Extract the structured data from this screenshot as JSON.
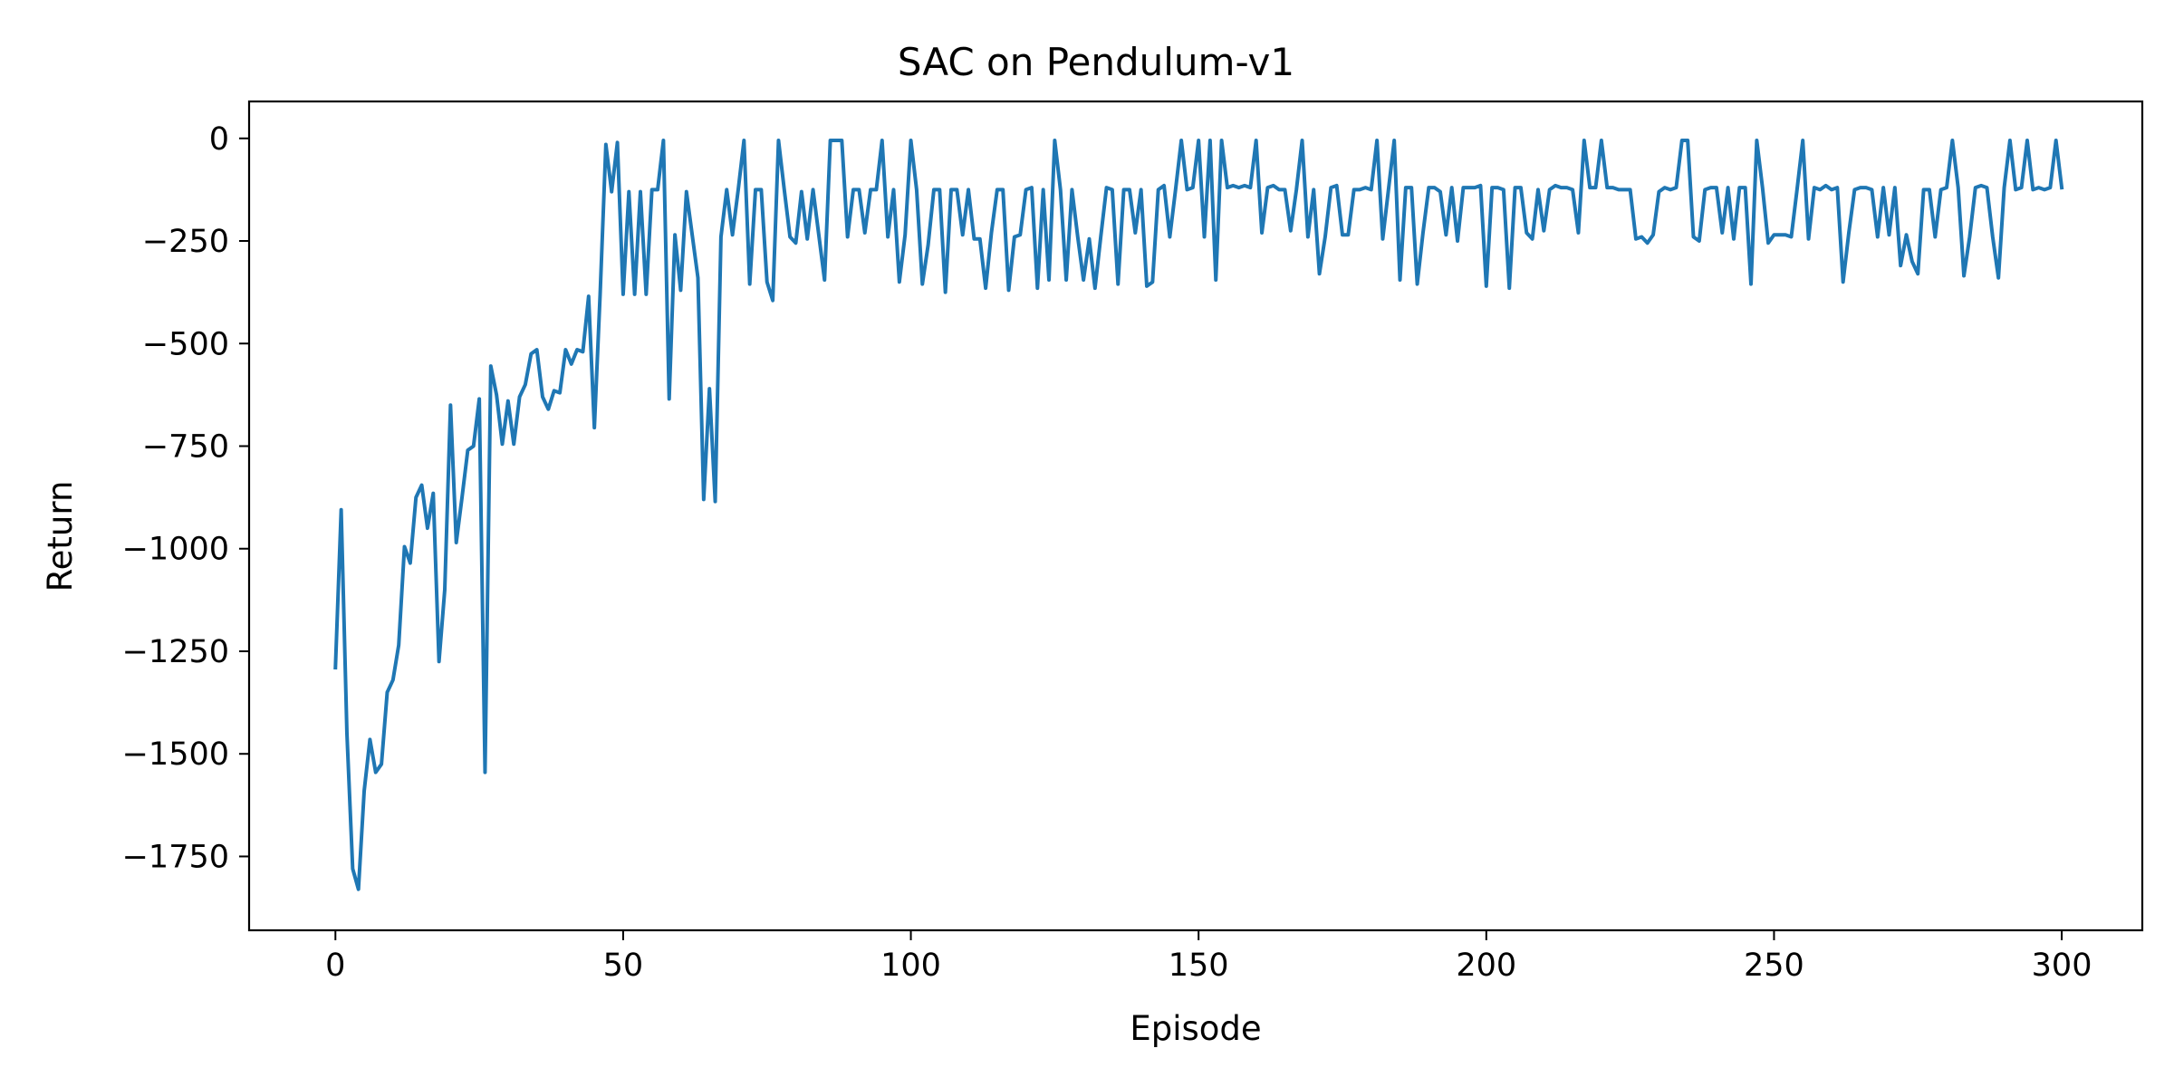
{
  "chart_data": {
    "type": "line",
    "title": "SAC on Pendulum-v1",
    "xlabel": "Episode",
    "ylabel": "Return",
    "xlim": [
      -15,
      314
    ],
    "ylim": [
      -1930,
      90
    ],
    "xticks": [
      0,
      50,
      100,
      150,
      200,
      250,
      300
    ],
    "yticks": [
      0,
      -250,
      -500,
      -750,
      -1000,
      -1250,
      -1500,
      -1750
    ],
    "xtick_labels": [
      "0",
      "50",
      "100",
      "150",
      "200",
      "250",
      "300"
    ],
    "ytick_labels": [
      "0",
      "−250",
      "−500",
      "−750",
      "−1000",
      "−1250",
      "−1500",
      "−1750"
    ],
    "grid": false,
    "series": [
      {
        "color": "#1f77b4",
        "x_start": 0,
        "x_step": 1,
        "values": [
          -1290,
          -905,
          -1450,
          -1780,
          -1830,
          -1590,
          -1465,
          -1545,
          -1525,
          -1350,
          -1320,
          -1235,
          -995,
          -1035,
          -875,
          -845,
          -950,
          -865,
          -1275,
          -1100,
          -650,
          -985,
          -875,
          -760,
          -750,
          -635,
          -1545,
          -555,
          -625,
          -745,
          -640,
          -745,
          -630,
          -600,
          -525,
          -515,
          -630,
          -660,
          -615,
          -620,
          -515,
          -550,
          -515,
          -520,
          -385,
          -705,
          -380,
          -15,
          -130,
          -10,
          -380,
          -130,
          -380,
          -130,
          -380,
          -125,
          -125,
          -5,
          -635,
          -235,
          -370,
          -130,
          -235,
          -340,
          -880,
          -610,
          -885,
          -240,
          -125,
          -235,
          -125,
          -5,
          -355,
          -125,
          -125,
          -350,
          -395,
          -5,
          -125,
          -240,
          -255,
          -130,
          -245,
          -125,
          -235,
          -345,
          -5,
          -5,
          -5,
          -240,
          -125,
          -125,
          -230,
          -125,
          -125,
          -5,
          -240,
          -125,
          -350,
          -235,
          -5,
          -125,
          -355,
          -260,
          -125,
          -125,
          -375,
          -125,
          -125,
          -235,
          -125,
          -245,
          -245,
          -365,
          -230,
          -125,
          -125,
          -370,
          -240,
          -235,
          -125,
          -120,
          -365,
          -125,
          -345,
          -5,
          -125,
          -345,
          -125,
          -240,
          -345,
          -245,
          -365,
          -240,
          -120,
          -125,
          -355,
          -125,
          -125,
          -230,
          -125,
          -360,
          -350,
          -125,
          -115,
          -240,
          -125,
          -5,
          -125,
          -120,
          -5,
          -240,
          -5,
          -345,
          -5,
          -120,
          -115,
          -120,
          -115,
          -120,
          -5,
          -230,
          -120,
          -115,
          -125,
          -125,
          -225,
          -125,
          -5,
          -240,
          -125,
          -330,
          -240,
          -120,
          -115,
          -235,
          -235,
          -125,
          -125,
          -120,
          -125,
          -5,
          -245,
          -125,
          -5,
          -345,
          -120,
          -120,
          -355,
          -230,
          -120,
          -120,
          -130,
          -235,
          -120,
          -250,
          -120,
          -120,
          -120,
          -115,
          -360,
          -120,
          -120,
          -125,
          -365,
          -120,
          -120,
          -230,
          -245,
          -125,
          -225,
          -125,
          -115,
          -120,
          -120,
          -125,
          -230,
          -5,
          -120,
          -120,
          -5,
          -120,
          -120,
          -125,
          -125,
          -125,
          -245,
          -240,
          -255,
          -235,
          -130,
          -120,
          -125,
          -120,
          -5,
          -5,
          -240,
          -250,
          -125,
          -120,
          -120,
          -230,
          -120,
          -245,
          -120,
          -120,
          -355,
          -5,
          -120,
          -255,
          -235,
          -235,
          -235,
          -240,
          -125,
          -5,
          -245,
          -120,
          -125,
          -115,
          -125,
          -120,
          -350,
          -230,
          -125,
          -120,
          -120,
          -125,
          -240,
          -120,
          -235,
          -120,
          -310,
          -235,
          -300,
          -330,
          -125,
          -125,
          -240,
          -125,
          -120,
          -5,
          -120,
          -335,
          -240,
          -120,
          -115,
          -120,
          -240,
          -340,
          -120,
          -5,
          -125,
          -120,
          -5,
          -125,
          -120,
          -125,
          -120,
          -5,
          -120
        ]
      }
    ]
  }
}
